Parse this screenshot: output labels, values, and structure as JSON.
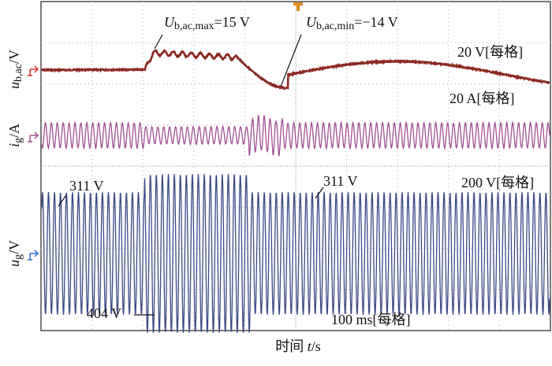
{
  "chart_data": {
    "type": "oscilloscope",
    "x_label": {
      "text": "时间 ",
      "symbol": "t",
      "unit": "/s"
    },
    "time_scale": "100 ms[每格]",
    "channels": [
      {
        "symbol": "u",
        "subscript": "b,ac",
        "unit": "/V",
        "scale": "20 V[每格]",
        "color": "#8b2a22"
      },
      {
        "symbol": "i",
        "subscript": "g",
        "unit": "/A",
        "scale": "20 A[每格]",
        "color": "#a24f94"
      },
      {
        "symbol": "u",
        "subscript": "g",
        "unit": "/V",
        "scale": "200 V[每格]",
        "color": "#3b4a86"
      }
    ],
    "annotations": [
      {
        "symbol": "U",
        "subscript": "b,ac,max",
        "text": "=15 V"
      },
      {
        "symbol": "U",
        "subscript": "b,ac,min",
        "text": "=−14 V"
      },
      {
        "text": "311 V"
      },
      {
        "text": "311 V"
      },
      {
        "text": "404 V"
      }
    ]
  }
}
